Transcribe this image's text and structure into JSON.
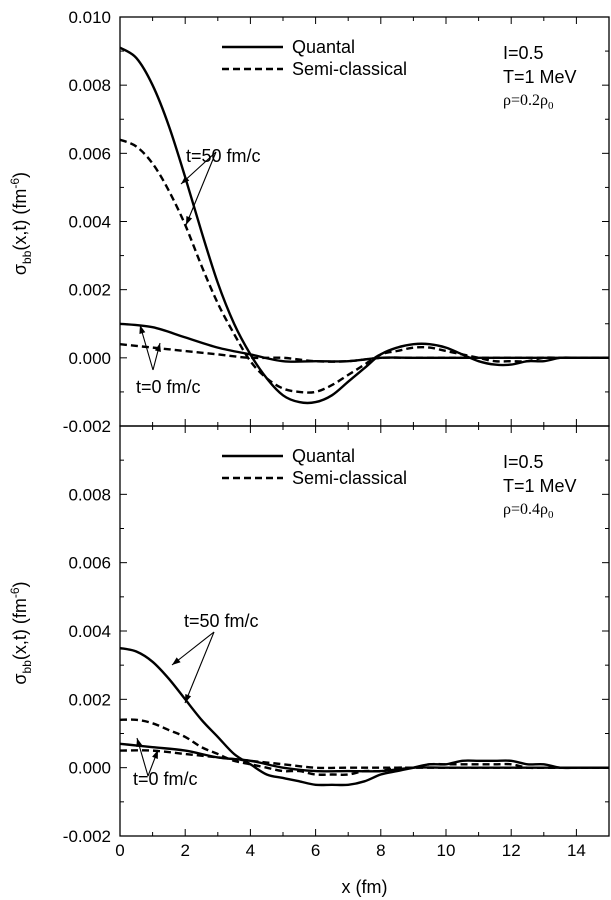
{
  "chart_data": [
    {
      "type": "line",
      "panel": "top",
      "xlim": [
        0,
        15
      ],
      "ylim": [
        -0.002,
        0.01
      ],
      "x_ticks": [
        0,
        2,
        4,
        6,
        8,
        10,
        12,
        14
      ],
      "y_ticks": [
        "-0.002",
        "0.000",
        "0.002",
        "0.004",
        "0.006",
        "0.008",
        "0.010"
      ],
      "ylabel": {
        "main": "σ",
        "sub": "bb",
        "rest": "(x,t) (fm",
        "sup": "-6",
        "close": ")"
      },
      "legend": [
        {
          "label": "Quantal",
          "style": "solid"
        },
        {
          "label": "Semi-classical",
          "style": "dashed"
        }
      ],
      "params": {
        "line1": "I=0.5",
        "line2": "T=1 MeV",
        "rho_main": "ρ=0.2ρ",
        "rho_sub": "0"
      },
      "annotations": [
        "t=50 fm/c",
        "t=0 fm/c"
      ],
      "series": [
        {
          "name": "Quantal",
          "time": "t=50 fm/c",
          "style": "solid",
          "x": [
            0,
            0.5,
            1,
            1.5,
            2,
            2.5,
            3,
            3.5,
            4,
            4.5,
            5,
            5.5,
            6,
            6.5,
            7,
            7.5,
            8,
            8.5,
            9,
            9.5,
            10,
            10.5,
            11,
            11.5,
            12,
            12.5,
            13,
            13.5,
            14,
            14.5,
            15
          ],
          "y": [
            0.0091,
            0.0088,
            0.008,
            0.0068,
            0.0053,
            0.0037,
            0.0022,
            0.001,
            0.0001,
            -0.0006,
            -0.0011,
            -0.0013,
            -0.0013,
            -0.0011,
            -0.0007,
            -0.0003,
            0.0001,
            0.0003,
            0.0004,
            0.0004,
            0.0003,
            0.0001,
            -0.0001,
            -0.0002,
            -0.0002,
            -0.0001,
            -0.0001,
            0.0,
            0.0,
            0.0,
            0.0
          ]
        },
        {
          "name": "Semi-classical",
          "time": "t=50 fm/c",
          "style": "dashed",
          "x": [
            0,
            0.5,
            1,
            1.5,
            2,
            2.5,
            3,
            3.5,
            4,
            4.5,
            5,
            5.5,
            6,
            6.5,
            7,
            7.5,
            8,
            8.5,
            9,
            9.5,
            10,
            10.5,
            11,
            11.5,
            12,
            12.5,
            13,
            13.5,
            14,
            14.5,
            15
          ],
          "y": [
            0.0064,
            0.0062,
            0.0057,
            0.0049,
            0.0039,
            0.0027,
            0.0016,
            0.0007,
            -0.0001,
            -0.0006,
            -0.0009,
            -0.001,
            -0.001,
            -0.0008,
            -0.0005,
            -0.0002,
            0.0001,
            0.0002,
            0.0003,
            0.0003,
            0.0002,
            0.0001,
            0.0,
            -0.0001,
            -0.0001,
            -0.0001,
            0.0,
            0.0,
            0.0,
            0.0,
            0.0
          ]
        },
        {
          "name": "Quantal",
          "time": "t=0 fm/c",
          "style": "solid",
          "x": [
            0,
            1,
            2,
            3,
            4,
            5,
            6,
            7,
            8,
            9,
            10,
            11,
            12,
            13,
            14,
            15
          ],
          "y": [
            0.001,
            0.0009,
            0.0006,
            0.0003,
            0.0001,
            -0.0001,
            -0.0001,
            -0.0001,
            0.0,
            0.0,
            0.0,
            0.0,
            0.0,
            0.0,
            0.0,
            0.0
          ]
        },
        {
          "name": "Semi-classical",
          "time": "t=0 fm/c",
          "style": "dashed",
          "x": [
            0,
            1,
            2,
            3,
            4,
            5,
            6,
            7,
            8,
            9,
            10,
            11,
            12,
            13,
            14,
            15
          ],
          "y": [
            0.0004,
            0.0003,
            0.0002,
            0.0001,
            0.0,
            0.0,
            -0.0001,
            -0.0001,
            0.0,
            0.0,
            0.0,
            0.0,
            0.0,
            0.0,
            0.0,
            0.0
          ]
        }
      ]
    },
    {
      "type": "line",
      "panel": "bottom",
      "xlim": [
        0,
        15
      ],
      "ylim": [
        -0.002,
        0.01
      ],
      "x_ticks": [
        0,
        2,
        4,
        6,
        8,
        10,
        12,
        14
      ],
      "y_ticks": [
        "-0.002",
        "0.000",
        "0.002",
        "0.004",
        "0.006",
        "0.008"
      ],
      "xlabel": "x (fm)",
      "ylabel": {
        "main": "σ",
        "sub": "bb",
        "rest": "(x,t) (fm",
        "sup": "-6",
        "close": ")"
      },
      "legend": [
        {
          "label": "Quantal",
          "style": "solid"
        },
        {
          "label": "Semi-classical",
          "style": "dashed"
        }
      ],
      "params": {
        "line1": "I=0.5",
        "line2": "T=1 MeV",
        "rho_main": "ρ=0.4ρ",
        "rho_sub": "0"
      },
      "annotations": [
        "t=50 fm/c",
        "t=0 fm/c"
      ],
      "series": [
        {
          "name": "Quantal",
          "time": "t=50 fm/c",
          "style": "solid",
          "x": [
            0,
            0.5,
            1,
            1.5,
            2,
            2.5,
            3,
            3.5,
            4,
            4.5,
            5,
            5.5,
            6,
            6.5,
            7,
            7.5,
            8,
            8.5,
            9,
            9.5,
            10,
            10.5,
            11,
            11.5,
            12,
            12.5,
            13,
            13.5,
            14,
            14.5,
            15
          ],
          "y": [
            0.0035,
            0.0034,
            0.0031,
            0.0026,
            0.002,
            0.0014,
            0.0009,
            0.0004,
            0.0001,
            -0.0002,
            -0.0003,
            -0.0004,
            -0.0005,
            -0.0005,
            -0.0005,
            -0.0004,
            -0.0002,
            -0.0001,
            0.0,
            0.0001,
            0.0001,
            0.0002,
            0.0002,
            0.0002,
            0.0002,
            0.0001,
            0.0001,
            0.0,
            0.0,
            0.0,
            0.0
          ]
        },
        {
          "name": "Semi-classical",
          "time": "t=50 fm/c",
          "style": "dashed",
          "x": [
            0,
            0.5,
            1,
            1.5,
            2,
            2.5,
            3,
            3.5,
            4,
            4.5,
            5,
            5.5,
            6,
            6.5,
            7,
            7.5,
            8,
            8.5,
            9,
            9.5,
            10,
            10.5,
            11,
            11.5,
            12,
            12.5,
            13,
            13.5,
            14,
            14.5,
            15
          ],
          "y": [
            0.0014,
            0.0014,
            0.0013,
            0.0011,
            0.0009,
            0.0006,
            0.0004,
            0.0002,
            0.0001,
            0.0,
            -0.0001,
            -0.0001,
            -0.0002,
            -0.0002,
            -0.0002,
            -0.0001,
            -0.0001,
            0.0,
            0.0,
            0.0001,
            0.0001,
            0.0001,
            0.0001,
            0.0001,
            0.0001,
            0.0,
            0.0,
            0.0,
            0.0,
            0.0,
            0.0
          ]
        },
        {
          "name": "Quantal",
          "time": "t=0 fm/c",
          "style": "solid",
          "x": [
            0,
            1,
            2,
            3,
            4,
            5,
            6,
            7,
            8,
            9,
            10,
            11,
            12,
            13,
            14,
            15
          ],
          "y": [
            0.0007,
            0.0006,
            0.0005,
            0.0003,
            0.0002,
            0.0,
            -0.0001,
            -0.0001,
            -0.0001,
            0.0,
            0.0,
            0.0,
            0.0,
            0.0,
            0.0,
            0.0
          ]
        },
        {
          "name": "Semi-classical",
          "time": "t=0 fm/c",
          "style": "dashed",
          "x": [
            0,
            1,
            2,
            3,
            4,
            5,
            6,
            7,
            8,
            9,
            10,
            11,
            12,
            13,
            14,
            15
          ],
          "y": [
            0.0005,
            0.0005,
            0.0004,
            0.0003,
            0.0002,
            0.0001,
            0.0,
            0.0,
            0.0,
            0.0,
            0.0,
            0.0,
            0.0,
            0.0,
            0.0,
            0.0
          ]
        }
      ]
    }
  ]
}
